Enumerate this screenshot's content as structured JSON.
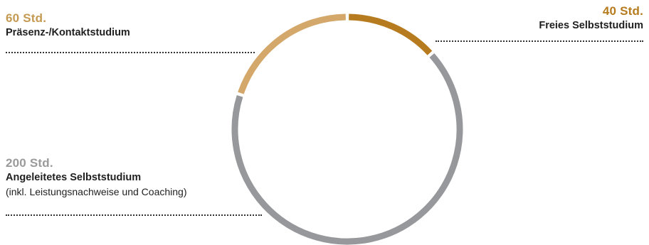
{
  "chart_data": {
    "type": "donut",
    "unit": "Std.",
    "total": 300,
    "colors": {
      "praesenz": "#d4a86a",
      "frei": "#b67b1e",
      "angeleitet": "#97989b"
    },
    "segments": [
      {
        "key": "frei",
        "value": 40,
        "value_label": "40 Std.",
        "label": "Freies Selbststudium",
        "sublabel": ""
      },
      {
        "key": "angeleitet",
        "value": 200,
        "value_label": "200 Std.",
        "label": "Angeleitetes Selbststudium",
        "sublabel": "(inkl. Leistungsnachweise und Coaching)"
      },
      {
        "key": "praesenz",
        "value": 60,
        "value_label": "60 Std.",
        "label": "Präsenz-/Kontaktstudium",
        "sublabel": ""
      }
    ]
  }
}
